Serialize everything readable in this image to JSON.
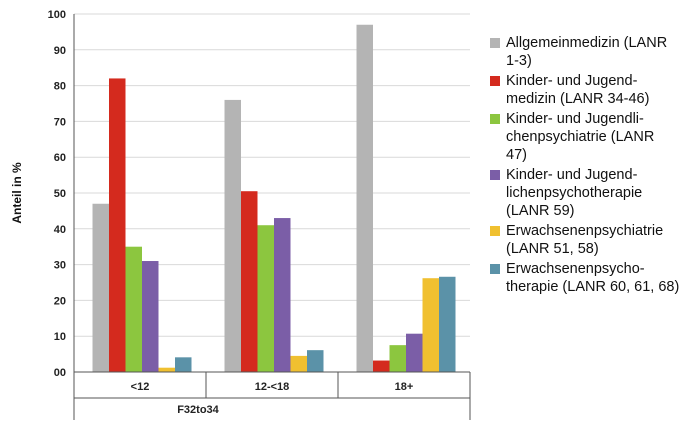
{
  "chart_data": {
    "type": "bar",
    "title": "",
    "xlabel": "F32to34",
    "ylabel": "Anteil in %",
    "ylim": [
      0,
      100
    ],
    "yticks": [
      "00",
      "10",
      "20",
      "30",
      "40",
      "50",
      "60",
      "70",
      "80",
      "90",
      "100"
    ],
    "grid": true,
    "legend_position": "right",
    "categories": [
      "<12",
      "12-<18",
      "18+"
    ],
    "series": [
      {
        "name": "Allgemeinmedizin (LANR\n1-3)",
        "color": "#b4b4b4",
        "values": [
          47,
          76,
          97
        ]
      },
      {
        "name": "Kinder- und Jugend-\nmedizin (LANR 34-46)",
        "color": "#d42a1e",
        "values": [
          82,
          50.5,
          3.2
        ]
      },
      {
        "name": "Kinder- und Jugendli-\nchenpsychiatrie (LANR\n47)",
        "color": "#8cc63f",
        "values": [
          35,
          41,
          7.5
        ]
      },
      {
        "name": "Kinder- und Jugend-\nlichenpsychotherapie\n(LANR 59)",
        "color": "#7b5ea7",
        "values": [
          31,
          43,
          10.7
        ]
      },
      {
        "name": "Erwachsenenpsychiatrie\n(LANR 51, 58)",
        "color": "#f0c030",
        "values": [
          1.2,
          4.5,
          26.2
        ]
      },
      {
        "name": "Erwachsenenpsycho-\ntherapie (LANR 60, 61, 68)",
        "color": "#5b92a8",
        "values": [
          4.1,
          6.1,
          26.6
        ]
      }
    ]
  }
}
